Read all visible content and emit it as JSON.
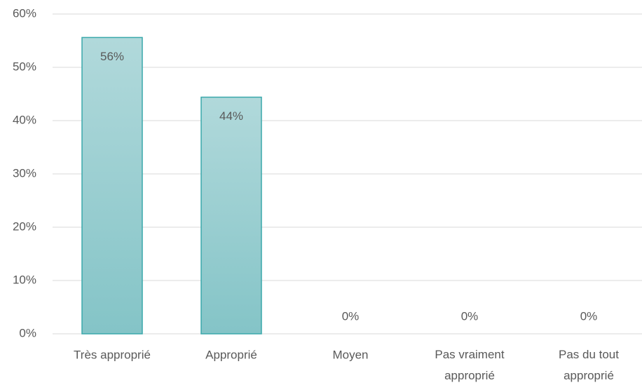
{
  "chart_data": {
    "type": "bar",
    "categories": [
      "Très approprié",
      "Approprié",
      "Moyen",
      "Pas vraiment approprié",
      "Pas du tout approprié"
    ],
    "values": [
      55.6,
      44.4,
      0,
      0,
      0
    ],
    "value_labels": [
      "56%",
      "44%",
      "0%",
      "0%",
      "0%"
    ],
    "color": "#96cdd0",
    "ylim": [
      0,
      60
    ],
    "yticks": [
      {
        "value": 0,
        "label": "0%"
      },
      {
        "value": 10,
        "label": "10%"
      },
      {
        "value": 20,
        "label": "20%"
      },
      {
        "value": 30,
        "label": "30%"
      },
      {
        "value": 40,
        "label": "40%"
      },
      {
        "value": 50,
        "label": "50%"
      },
      {
        "value": 60,
        "label": "60%"
      }
    ],
    "grid": true
  }
}
